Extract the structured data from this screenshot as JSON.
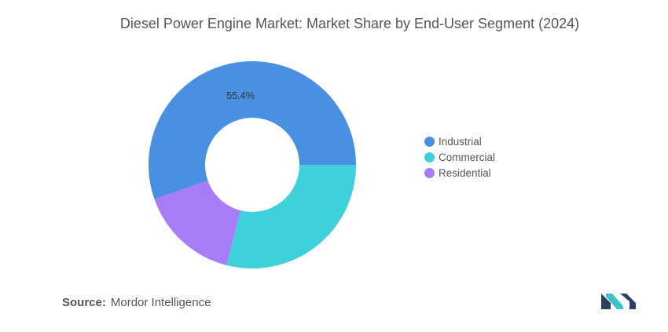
{
  "title": "Diesel Power Engine Market: Market Share by End-User Segment (2024)",
  "chart_data": {
    "type": "pie",
    "style": "donut",
    "title": "Diesel Power Engine Market: Market Share by End-User Segment (2024)",
    "categories": [
      "Industrial",
      "Commercial",
      "Residential"
    ],
    "values": [
      55.4,
      29.0,
      15.6
    ],
    "colors": [
      "#4a90e2",
      "#3fd1db",
      "#a97cf7"
    ],
    "data_labels": [
      "55.4%",
      "",
      ""
    ],
    "legend_position": "right"
  },
  "legend": {
    "items": [
      {
        "label": "Industrial",
        "color": "#4a90e2"
      },
      {
        "label": "Commercial",
        "color": "#3fd1db"
      },
      {
        "label": "Residential",
        "color": "#a97cf7"
      }
    ]
  },
  "source": {
    "label": "Source:",
    "text": "Mordor Intelligence"
  },
  "logo": {
    "icon": "mordor-intelligence-logo",
    "colors": [
      "#2c3e66",
      "#3fc1c9"
    ]
  }
}
